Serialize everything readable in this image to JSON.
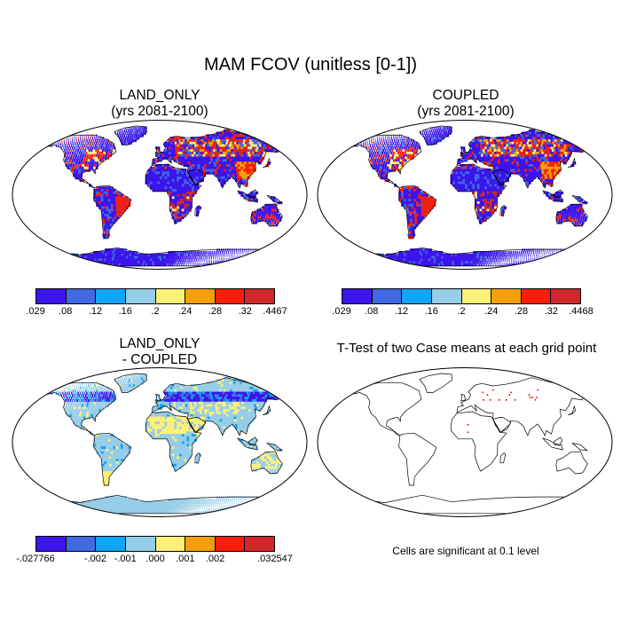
{
  "figure": {
    "title": "MAM FCOV (unitless [0-1])"
  },
  "panels": [
    {
      "id": "land-only",
      "title_line1": "LAND_ONLY",
      "title_line2": "(yrs 2081-2100)",
      "fill": "fraction"
    },
    {
      "id": "coupled",
      "title_line1": "COUPLED",
      "title_line2": "(yrs 2081-2100)",
      "fill": "fraction"
    },
    {
      "id": "difference",
      "title_line1": "LAND_ONLY",
      "title_line2": "- COUPLED",
      "fill": "diff"
    },
    {
      "id": "ttest",
      "title_line1": "T-Test of two Case means at each grid point",
      "title_line2": "",
      "fill": "ttest"
    }
  ],
  "colorbars": [
    {
      "name": "land-only-colorbar",
      "colors": [
        "#3c14ec",
        "#4169e1",
        "#10a5f6",
        "#96cde8",
        "#fdf078",
        "#f5a00a",
        "#fd1e0a",
        "#d0282a"
      ],
      "labels": [
        ".029",
        ".08",
        ".12",
        ".16",
        ".2",
        ".24",
        ".28",
        ".32",
        ".4467"
      ]
    },
    {
      "name": "coupled-colorbar",
      "colors": [
        "#3c14ec",
        "#4169e1",
        "#10a5f6",
        "#96cde8",
        "#fdf078",
        "#f5a00a",
        "#fd1e0a",
        "#d0282a"
      ],
      "labels": [
        ".029",
        ".08",
        ".12",
        ".16",
        ".2",
        ".24",
        ".28",
        ".32",
        ".4468"
      ]
    },
    {
      "name": "difference-colorbar",
      "colors": [
        "#3c14ec",
        "#4169e1",
        "#10a5f6",
        "#96cde8",
        "#fdf078",
        "#f5a00a",
        "#fd1e0a",
        "#d0282a"
      ],
      "labels": [
        "-.027766",
        "",
        "-.002",
        "-.001",
        ".000",
        ".001",
        ".002",
        "",
        ".032547"
      ]
    }
  ],
  "ttest_note": "Cells are significant at 0.1 level",
  "colors": {
    "ocean": "#ffffff",
    "coast": "#000000",
    "significant": "#e00000"
  }
}
